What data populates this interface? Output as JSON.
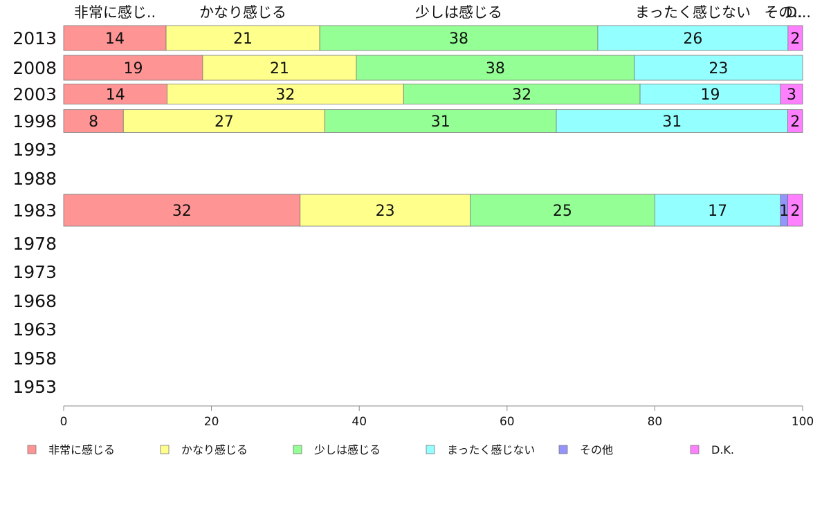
{
  "chart_data": {
    "type": "bar",
    "orientation": "horizontal",
    "stacked": true,
    "categories": [
      "2013",
      "2008",
      "2003",
      "1998",
      "1993",
      "1988",
      "1983",
      "1978",
      "1973",
      "1968",
      "1963",
      "1958",
      "1953"
    ],
    "series": [
      {
        "name": "非常に感じる",
        "color": "#ff9494",
        "values": [
          14,
          19,
          14,
          8,
          null,
          null,
          32,
          null,
          null,
          null,
          null,
          null,
          null
        ]
      },
      {
        "name": "かなり感じる",
        "color": "#ffff8c",
        "values": [
          21,
          21,
          32,
          27,
          null,
          null,
          23,
          null,
          null,
          null,
          null,
          null,
          null
        ]
      },
      {
        "name": "少しは感じる",
        "color": "#94ff94",
        "values": [
          38,
          38,
          32,
          31,
          null,
          null,
          25,
          null,
          null,
          null,
          null,
          null,
          null
        ]
      },
      {
        "name": "まったく感じない",
        "color": "#94ffff",
        "values": [
          26,
          23,
          19,
          31,
          null,
          null,
          17,
          null,
          null,
          null,
          null,
          null,
          null
        ]
      },
      {
        "name": "その他",
        "color": "#9494ff",
        "values": [
          0,
          0,
          0,
          0,
          null,
          null,
          1,
          null,
          null,
          null,
          null,
          null,
          null
        ]
      },
      {
        "name": "D.K.",
        "color": "#ff80ff",
        "values": [
          2,
          0,
          3,
          2,
          null,
          null,
          2,
          null,
          null,
          null,
          null,
          null,
          null
        ]
      }
    ],
    "column_headers": [
      "非常に感じ..",
      "かなり感じる",
      "少しは感じる",
      "まったく感じない",
      "その..",
      "D..."
    ],
    "xticks": [
      "0",
      "20",
      "40",
      "60",
      "80",
      "100"
    ],
    "xlim": [
      0,
      100
    ],
    "grid": false,
    "legend_position": "bottom"
  }
}
